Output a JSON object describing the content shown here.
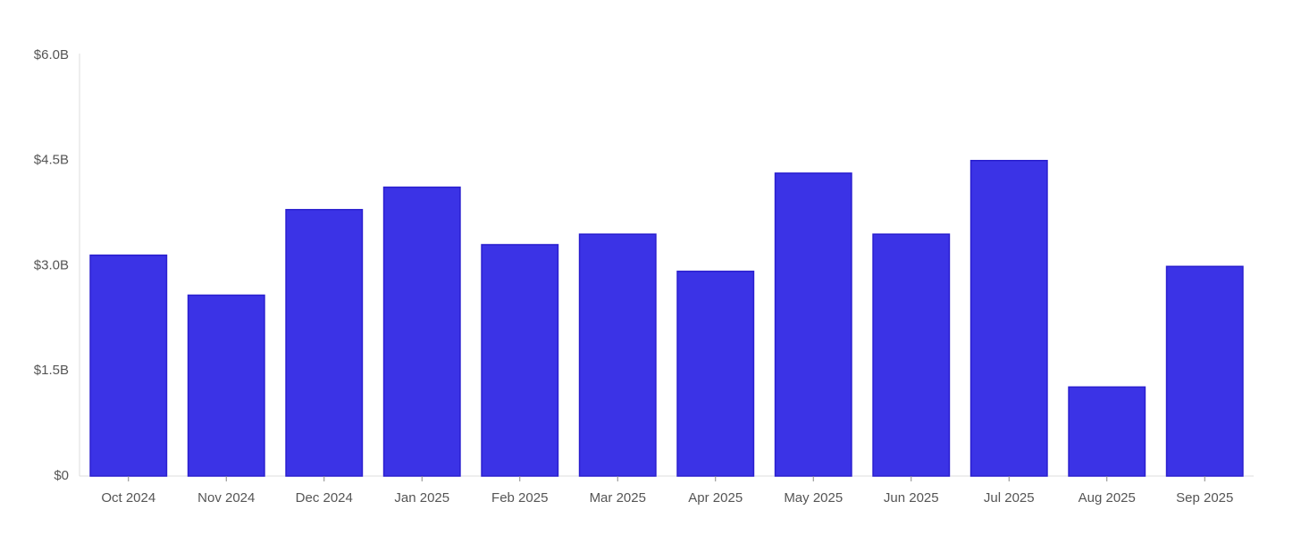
{
  "chart_data": {
    "type": "bar",
    "categories": [
      "Oct 2024",
      "Nov 2024",
      "Dec 2024",
      "Jan 2025",
      "Feb 2025",
      "Mar 2025",
      "Apr 2025",
      "May 2025",
      "Jun 2025",
      "Jul 2025",
      "Aug 2025",
      "Sep 2025"
    ],
    "values": [
      3.15,
      2.58,
      3.8,
      4.12,
      3.3,
      3.45,
      2.92,
      4.32,
      3.45,
      4.5,
      1.27,
      2.99
    ],
    "color": "#3b33e6",
    "ylim": [
      0,
      6
    ],
    "yticks": [
      {
        "value": 0,
        "label": "$0"
      },
      {
        "value": 1.5,
        "label": "$1.5B"
      },
      {
        "value": 3,
        "label": "$3.0B"
      },
      {
        "value": 4.5,
        "label": "$4.5B"
      },
      {
        "value": 6,
        "label": "$6.0B"
      }
    ],
    "grid": false
  }
}
